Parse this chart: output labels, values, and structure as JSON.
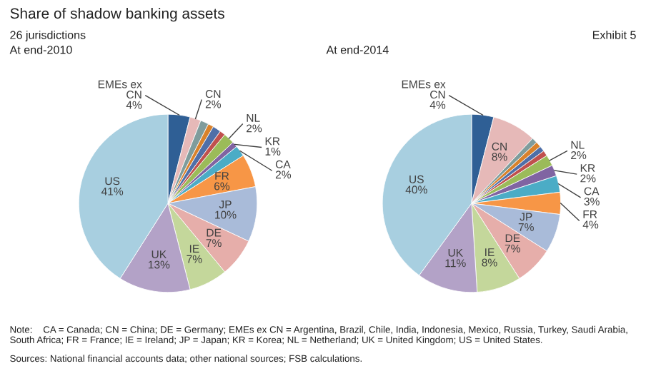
{
  "chart_data": [
    {
      "type": "pie",
      "title": "Share of shadow banking assets",
      "subtitle": "26 jurisdictions",
      "annotations": [
        "At end-2010",
        "Exhibit 5",
        "Note:    CA = Canada; CN = China; DE = Germany; EMEs ex CN = Argentina, Brazil, Chile, India, Indonesia, Mexico, Russia, Turkey, Saudi Arabia, South Africa; FR = France; IE = Ireland; JP = Japan; KR = Korea; NL = Netherland; UK = United Kingdom; US = United States.",
        "Sources: National financial accounts data; other national sources; FSB calculations."
      ],
      "categories": [
        "EMEs ex\nCN",
        "CN",
        null,
        null,
        null,
        null,
        "NL",
        "KR",
        "CA",
        "FR",
        "JP",
        "DE",
        "IE",
        "UK",
        "US"
      ],
      "values": [
        4,
        2,
        1.5,
        1,
        1.5,
        1,
        2,
        1,
        2,
        6,
        10,
        7,
        7,
        13,
        41
      ],
      "value_labels": [
        "4%",
        "2%",
        null,
        null,
        null,
        null,
        "2%",
        "1%",
        "2%",
        "6%",
        "10%",
        "7%",
        "7%",
        "13%",
        "41%"
      ],
      "colors": [
        "#2f5f95",
        "#e6b9b8",
        "#7f9c9c",
        "#d9822b",
        "#4f6fa8",
        "#c0504d",
        "#9bbb59",
        "#8064a2",
        "#4bacc6",
        "#f79646",
        "#a9bbd9",
        "#e6aeaa",
        "#c4d79b",
        "#b3a2c7",
        "#a8cfe0"
      ]
    },
    {
      "type": "pie",
      "annotations": [
        "At end-2014"
      ],
      "categories": [
        "EMEs ex\nCN",
        "CN",
        null,
        null,
        null,
        null,
        "NL",
        "KR",
        "CA",
        "FR",
        "JP",
        "DE",
        "IE",
        "UK",
        "US"
      ],
      "values": [
        4,
        8,
        1,
        1,
        1,
        1,
        2,
        2,
        3,
        4,
        7,
        7,
        8,
        11,
        40
      ],
      "value_labels": [
        "4%",
        "8%",
        null,
        null,
        null,
        null,
        "2%",
        "2%",
        "3%",
        "4%",
        "7%",
        "7%",
        "8%",
        "11%",
        "40%"
      ],
      "colors": [
        "#2f5f95",
        "#e6b9b8",
        "#7f9c9c",
        "#d9822b",
        "#4f6fa8",
        "#c0504d",
        "#9bbb59",
        "#8064a2",
        "#4bacc6",
        "#f79646",
        "#a9bbd9",
        "#e6aeaa",
        "#c4d79b",
        "#b3a2c7",
        "#a8cfe0"
      ]
    }
  ]
}
